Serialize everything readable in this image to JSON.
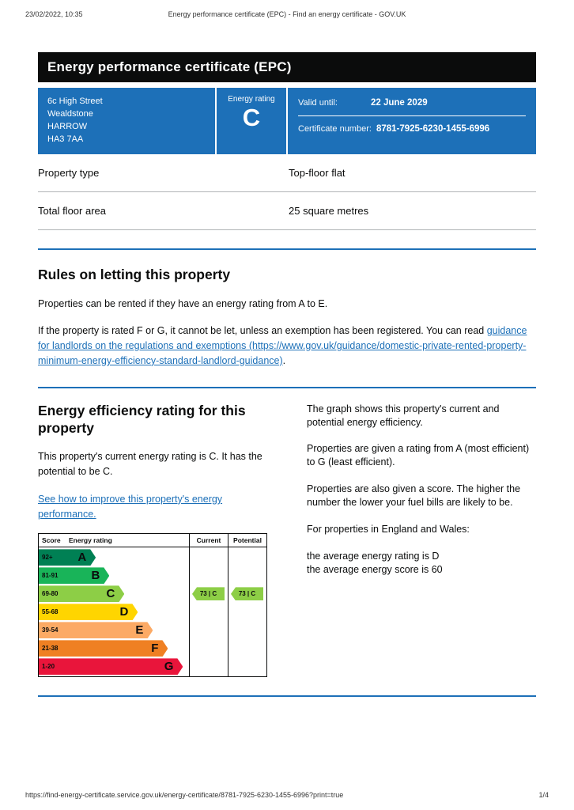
{
  "accent_color": "#1d70b8",
  "print_header": {
    "datetime": "23/02/2022, 10:35",
    "title": "Energy performance certificate (EPC) - Find an energy certificate - GOV.UK"
  },
  "banner": {
    "title": "Energy performance certificate (EPC)"
  },
  "summary": {
    "address": "6c High Street\nWealdstone\nHARROW\nHA3 7AA",
    "energy_rating_label": "Energy rating",
    "energy_rating": "C",
    "valid_until_label": "Valid until:",
    "valid_until_value": "22 June 2029",
    "certificate_label": "Certificate number:",
    "certificate_value": "8781-7925-6230-1455-6996"
  },
  "details": {
    "rows": [
      {
        "label": "Property type",
        "value": "Top-floor flat"
      },
      {
        "label": "Total floor area",
        "value": "25 square metres"
      }
    ]
  },
  "letting": {
    "heading": "Rules on letting this property",
    "para1": "Properties can be rented if they have an energy rating from A to E.",
    "para2_prefix": "If the property is rated F or G, it cannot be let, unless an exemption has been registered. You can read ",
    "para2_link": "guidance for landlords on the regulations and exemptions (https://www.gov.uk/guidance/domestic-private-rented-property-minimum-energy-efficiency-standard-landlord-guidance)",
    "para2_suffix": "."
  },
  "efficiency": {
    "heading": "Energy efficiency rating for this property",
    "para1": "This property's current energy rating is C. It has the potential to be C.",
    "improve_link": "See how to improve this property's energy performance.",
    "right_paras": [
      "The graph shows this property's current and potential energy efficiency.",
      "Properties are given a rating from A (most efficient) to G (least efficient).",
      "Properties are also given a score. The higher the number the lower your fuel bills are likely to be.",
      "For properties in England and Wales:",
      "the average energy rating is D\nthe average energy score is 60"
    ]
  },
  "chart_data": {
    "type": "bar",
    "title": "Energy efficiency rating bands",
    "headers": {
      "score": "Score",
      "rating": "Energy rating",
      "current": "Current",
      "potential": "Potential"
    },
    "bands": [
      {
        "score_range": "92+",
        "letter": "A",
        "color": "#008054",
        "width_pct": 38
      },
      {
        "score_range": "81-91",
        "letter": "B",
        "color": "#19b459",
        "width_pct": 47
      },
      {
        "score_range": "69-80",
        "letter": "C",
        "color": "#8dce46",
        "width_pct": 57
      },
      {
        "score_range": "55-68",
        "letter": "D",
        "color": "#ffd500",
        "width_pct": 66
      },
      {
        "score_range": "39-54",
        "letter": "E",
        "color": "#fcaa65",
        "width_pct": 76
      },
      {
        "score_range": "21-38",
        "letter": "F",
        "color": "#ef8023",
        "width_pct": 86
      },
      {
        "score_range": "1-20",
        "letter": "G",
        "color": "#e9153b",
        "width_pct": 96
      }
    ],
    "current": {
      "score": 73,
      "letter": "C",
      "label": "73 | C",
      "band_index": 2,
      "color": "#8dce46"
    },
    "potential": {
      "score": 73,
      "letter": "C",
      "label": "73 | C",
      "band_index": 2,
      "color": "#8dce46"
    }
  },
  "print_footer": {
    "url": "https://find-energy-certificate.service.gov.uk/energy-certificate/8781-7925-6230-1455-6996?print=true",
    "page": "1/4"
  }
}
